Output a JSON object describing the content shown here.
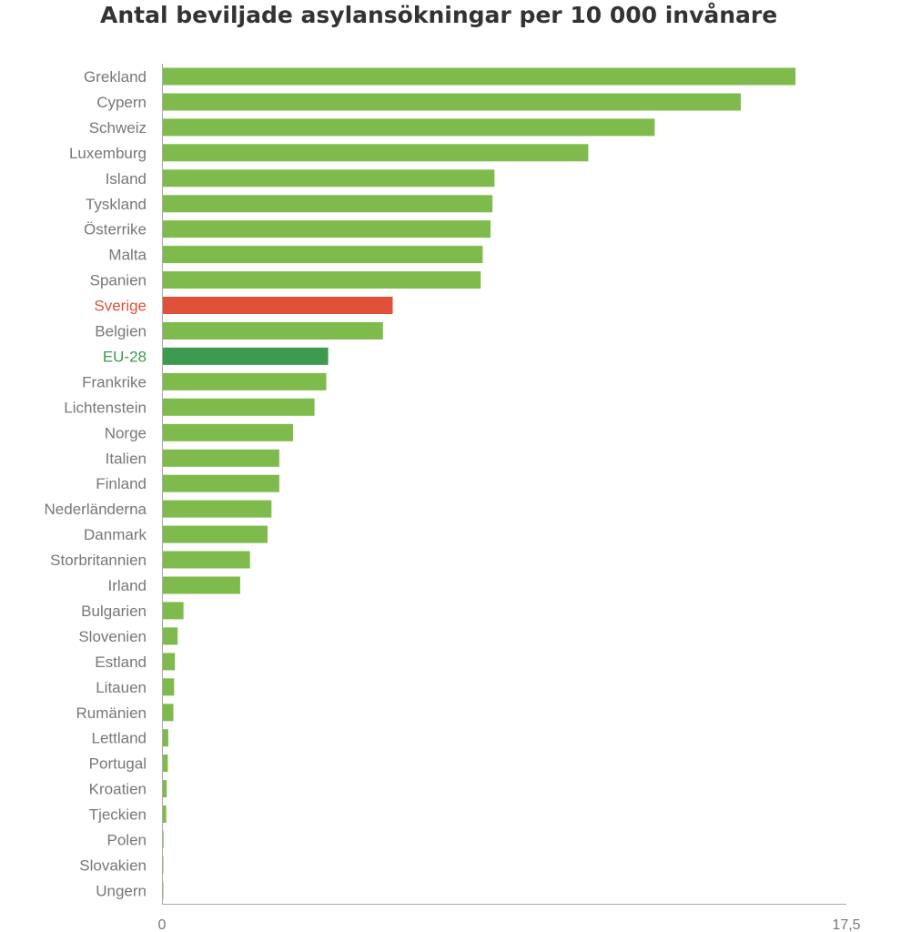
{
  "chart_data": {
    "type": "bar",
    "orientation": "horizontal",
    "title": "Antal beviljade asylansökningar per 10 000 invånare",
    "xlabel": "",
    "ylabel": "",
    "xlim": [
      0,
      17.5
    ],
    "x_tick_labels": [
      "0",
      "17,5"
    ],
    "grid": false,
    "legend": "none",
    "categories": [
      "Grekland",
      "Cypern",
      "Schweiz",
      "Luxemburg",
      "Island",
      "Tyskland",
      "Österrike",
      "Malta",
      "Spanien",
      "Sverige",
      "Belgien",
      "EU-28",
      "Frankrike",
      "Lichtenstein",
      "Norge",
      "Italien",
      "Finland",
      "Nederländerna",
      "Danmark",
      "Storbritannien",
      "Irland",
      "Bulgarien",
      "Slovenien",
      "Estland",
      "Litauen",
      "Rumänien",
      "Lettland",
      "Portugal",
      "Kroatien",
      "Tjeckien",
      "Polen",
      "Slovakien",
      "Ungern"
    ],
    "values": [
      16.2,
      14.8,
      12.6,
      10.9,
      8.5,
      8.45,
      8.4,
      8.2,
      8.15,
      5.9,
      5.65,
      4.25,
      4.2,
      3.9,
      3.35,
      3.0,
      3.0,
      2.8,
      2.7,
      2.25,
      2.0,
      0.55,
      0.4,
      0.33,
      0.31,
      0.29,
      0.16,
      0.15,
      0.12,
      0.11,
      0.04,
      0.03,
      0.02
    ],
    "highlight": {
      "Sverige": "#e05038",
      "EU-28": "#3e9a4e"
    }
  },
  "colors": {
    "bar_default": "#7fbb4c",
    "label_default": "#777777",
    "axis": "#aaaaaa",
    "title": "#333333"
  }
}
